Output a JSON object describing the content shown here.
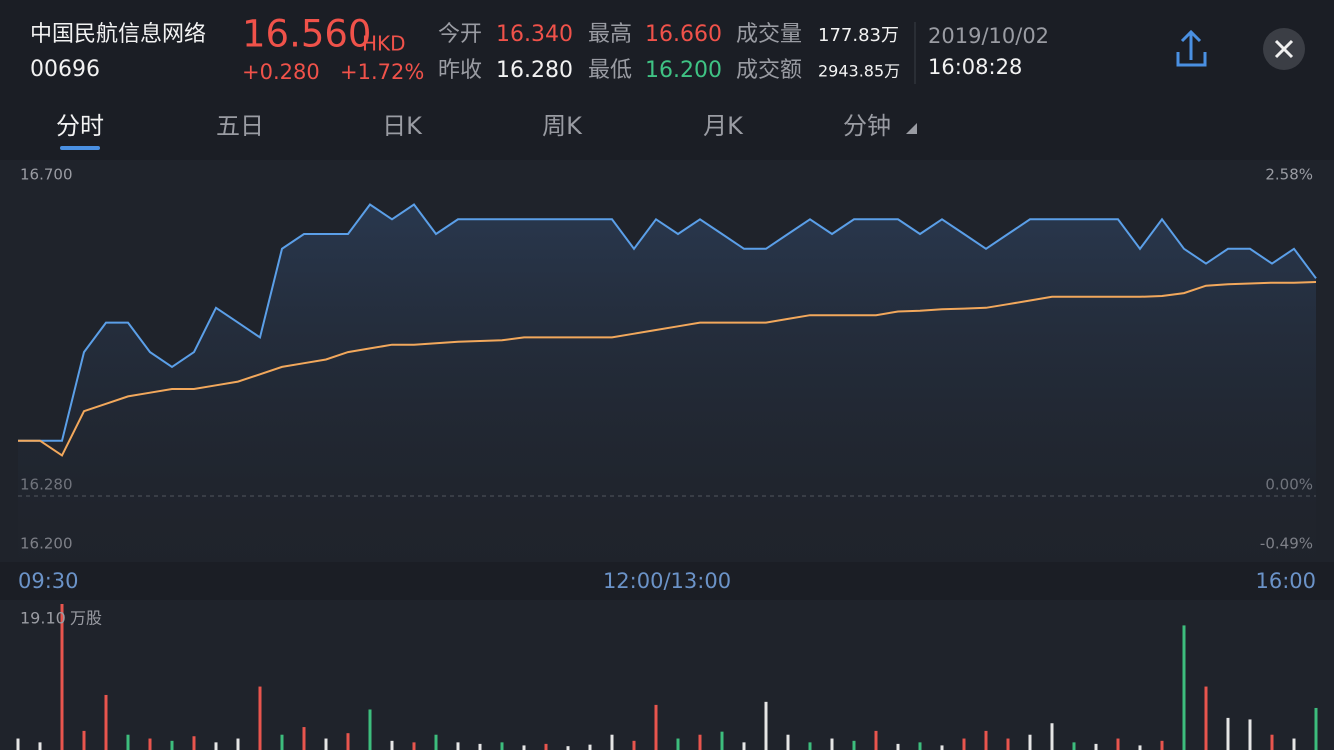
{
  "header": {
    "name": "中国民航信息网络",
    "code": "00696",
    "price": "16.560",
    "currency": "HKD",
    "change": "+0.280",
    "change_pct": "+1.72%",
    "stats": [
      {
        "label": "今开",
        "value": "16.340"
      },
      {
        "label": "昨收",
        "value": "16.280"
      },
      {
        "label": "最高",
        "value": "16.660"
      },
      {
        "label": "最低",
        "value": "16.200"
      },
      {
        "label": "成交量",
        "value": "177.83万"
      },
      {
        "label": "成交额",
        "value": "2943.85万"
      }
    ],
    "date": "2019/10/02",
    "time": "16:08:28"
  },
  "tabs": [
    "分时",
    "五日",
    "日K",
    "周K",
    "月K",
    "分钟"
  ],
  "chart": {
    "ylim": [
      16.2,
      16.7
    ],
    "yticks": [
      {
        "value": 16.7,
        "label": "16.700"
      },
      {
        "value": 16.28,
        "label": "16.280"
      },
      {
        "value": 16.2,
        "label": "16.200"
      }
    ],
    "pct_labels": [
      "2.58%",
      "0.00%",
      "-0.49%"
    ],
    "time_labels": [
      "09:30",
      "12:00/13:00",
      "16:00"
    ],
    "price": {
      "color": "#5b9fe8",
      "values": [
        16.34,
        16.34,
        16.34,
        16.46,
        16.5,
        16.5,
        16.46,
        16.44,
        16.46,
        16.52,
        16.5,
        16.48,
        16.6,
        16.62,
        16.62,
        16.62,
        16.66,
        16.64,
        16.66,
        16.62,
        16.64,
        16.64,
        16.64,
        16.64,
        16.64,
        16.64,
        16.64,
        16.64,
        16.6,
        16.64,
        16.62,
        16.64,
        16.62,
        16.6,
        16.6,
        16.62,
        16.64,
        16.62,
        16.64,
        16.64,
        16.64,
        16.62,
        16.64,
        16.62,
        16.6,
        16.62,
        16.64,
        16.64,
        16.64,
        16.64,
        16.64,
        16.6,
        16.64,
        16.6,
        16.58,
        16.6,
        16.6,
        16.58,
        16.6,
        16.56
      ]
    },
    "average": {
      "color": "#f2a85c",
      "values": [
        16.34,
        16.34,
        16.32,
        16.38,
        16.39,
        16.4,
        16.405,
        16.41,
        16.41,
        16.415,
        16.42,
        16.43,
        16.44,
        16.445,
        16.45,
        16.46,
        16.465,
        16.47,
        16.47,
        16.472,
        16.474,
        16.475,
        16.476,
        16.48,
        16.48,
        16.48,
        16.48,
        16.48,
        16.485,
        16.49,
        16.495,
        16.5,
        16.5,
        16.5,
        16.5,
        16.505,
        16.51,
        16.51,
        16.51,
        16.51,
        16.515,
        16.516,
        16.518,
        16.519,
        16.52,
        16.525,
        16.53,
        16.535,
        16.535,
        16.535,
        16.535,
        16.535,
        16.536,
        16.54,
        16.55,
        16.552,
        16.553,
        16.554,
        16.554,
        16.555
      ]
    }
  },
  "volume": {
    "max_label": {
      "value": 19.1,
      "label": "19.10"
    },
    "unit": "万股",
    "values": [
      1.5,
      1.0,
      19.1,
      2.5,
      7.2,
      2.0,
      1.5,
      1.2,
      1.8,
      1.0,
      1.5,
      8.3,
      2.0,
      3.0,
      1.5,
      2.2,
      5.3,
      1.2,
      1.0,
      2.0,
      1.0,
      0.8,
      1.0,
      0.6,
      0.8,
      0.5,
      0.7,
      2.0,
      1.2,
      5.9,
      1.5,
      2.0,
      2.4,
      1.0,
      6.3,
      2.0,
      1.0,
      1.5,
      1.2,
      2.5,
      0.8,
      1.0,
      0.6,
      1.5,
      2.5,
      1.5,
      2.0,
      3.5,
      1.0,
      0.8,
      1.5,
      0.6,
      1.2,
      16.3,
      8.3,
      4.2,
      4.0,
      2.0,
      1.5,
      5.5
    ],
    "colors": [
      "#e6e6e6",
      "#e6e6e6",
      "#e8554e",
      "#e8554e",
      "#e8554e",
      "#3dbd7d",
      "#e8554e",
      "#3dbd7d",
      "#e8554e",
      "#e6e6e6",
      "#e6e6e6",
      "#e8554e",
      "#3dbd7d",
      "#e8554e",
      "#e6e6e6",
      "#e8554e",
      "#3dbd7d",
      "#e6e6e6",
      "#e8554e",
      "#3dbd7d",
      "#e6e6e6",
      "#e6e6e6",
      "#3dbd7d",
      "#e6e6e6",
      "#e8554e",
      "#e6e6e6",
      "#e6e6e6",
      "#e6e6e6",
      "#e8554e",
      "#e8554e",
      "#3dbd7d",
      "#e8554e",
      "#3dbd7d",
      "#e6e6e6",
      "#e6e6e6",
      "#e6e6e6",
      "#3dbd7d",
      "#e6e6e6",
      "#3dbd7d",
      "#e8554e",
      "#e6e6e6",
      "#3dbd7d",
      "#e6e6e6",
      "#e8554e",
      "#e8554e",
      "#e8554e",
      "#e6e6e6",
      "#e6e6e6",
      "#3dbd7d",
      "#e6e6e6",
      "#e8554e",
      "#e6e6e6",
      "#e8554e",
      "#3dbd7d",
      "#e8554e",
      "#e6e6e6",
      "#e6e6e6",
      "#e8554e",
      "#e6e6e6",
      "#3dbd7d"
    ]
  }
}
